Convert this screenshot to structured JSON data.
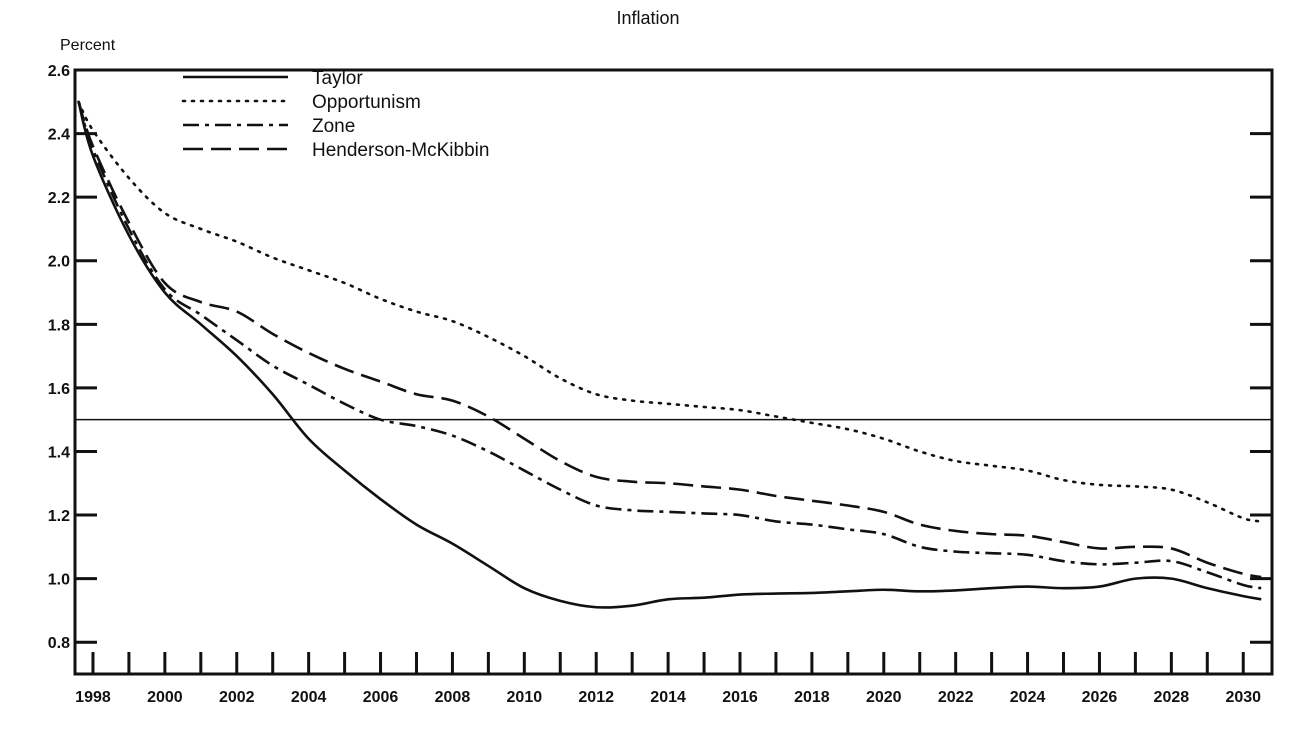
{
  "chart_data": {
    "type": "line",
    "title": "Inflation",
    "ylabel": "Percent",
    "xlabel": "",
    "xlim": [
      1997.5,
      2030.8
    ],
    "ylim": [
      0.7,
      2.6
    ],
    "reference_line": 1.5,
    "x_ticks": [
      1998,
      2000,
      2002,
      2004,
      2006,
      2008,
      2010,
      2012,
      2014,
      2016,
      2018,
      2020,
      2022,
      2024,
      2026,
      2028,
      2030
    ],
    "y_ticks": [
      0.8,
      1.0,
      1.2,
      1.4,
      1.6,
      1.8,
      2.0,
      2.2,
      2.4,
      2.6
    ],
    "y_tick_labels": [
      "0.8",
      "1.0",
      "1.2",
      "1.4",
      "1.6",
      "1.8",
      "2.0",
      "2.2",
      "2.4",
      "2.6"
    ],
    "legend_position": "top-left",
    "series": [
      {
        "name": "Taylor",
        "style": "solid",
        "x": [
          1997.6,
          1998,
          1999,
          2000,
          2001,
          2002,
          2003,
          2004,
          2005,
          2006,
          2007,
          2008,
          2009,
          2010,
          2011,
          2012,
          2013,
          2014,
          2015,
          2016,
          2017,
          2018,
          2019,
          2020,
          2021,
          2022,
          2023,
          2024,
          2025,
          2026,
          2027,
          2028,
          2029,
          2030,
          2030.5
        ],
        "y": [
          2.5,
          2.33,
          2.08,
          1.9,
          1.8,
          1.7,
          1.58,
          1.44,
          1.34,
          1.25,
          1.17,
          1.11,
          1.04,
          0.97,
          0.93,
          0.91,
          0.915,
          0.935,
          0.94,
          0.95,
          0.953,
          0.955,
          0.96,
          0.965,
          0.96,
          0.963,
          0.97,
          0.975,
          0.97,
          0.975,
          1.0,
          1.0,
          0.97,
          0.945,
          0.935
        ]
      },
      {
        "name": "Opportunism",
        "style": "dotted",
        "x": [
          1997.6,
          1998,
          1999,
          2000,
          2001,
          2002,
          2003,
          2004,
          2005,
          2006,
          2007,
          2008,
          2009,
          2010,
          2011,
          2012,
          2013,
          2014,
          2015,
          2016,
          2017,
          2018,
          2019,
          2020,
          2021,
          2022,
          2023,
          2024,
          2025,
          2026,
          2027,
          2028,
          2029,
          2030,
          2030.5
        ],
        "y": [
          2.5,
          2.41,
          2.26,
          2.15,
          2.1,
          2.06,
          2.01,
          1.97,
          1.93,
          1.88,
          1.84,
          1.81,
          1.76,
          1.7,
          1.63,
          1.58,
          1.56,
          1.55,
          1.54,
          1.53,
          1.51,
          1.49,
          1.47,
          1.44,
          1.4,
          1.37,
          1.355,
          1.34,
          1.31,
          1.295,
          1.29,
          1.28,
          1.24,
          1.19,
          1.18
        ]
      },
      {
        "name": "Zone",
        "style": "dashdot",
        "x": [
          1997.6,
          1998,
          1999,
          2000,
          2001,
          2002,
          2003,
          2004,
          2005,
          2006,
          2007,
          2008,
          2009,
          2010,
          2011,
          2012,
          2013,
          2014,
          2015,
          2016,
          2017,
          2018,
          2019,
          2020,
          2021,
          2022,
          2023,
          2024,
          2025,
          2026,
          2027,
          2028,
          2029,
          2030,
          2030.5
        ],
        "y": [
          2.5,
          2.35,
          2.1,
          1.91,
          1.83,
          1.75,
          1.67,
          1.61,
          1.55,
          1.5,
          1.48,
          1.45,
          1.4,
          1.34,
          1.28,
          1.23,
          1.215,
          1.21,
          1.205,
          1.2,
          1.18,
          1.17,
          1.155,
          1.14,
          1.1,
          1.085,
          1.08,
          1.075,
          1.055,
          1.045,
          1.05,
          1.055,
          1.02,
          0.98,
          0.97
        ]
      },
      {
        "name": "Henderson-McKibbin",
        "style": "dashed",
        "x": [
          1997.6,
          1998,
          1999,
          2000,
          2001,
          2002,
          2003,
          2004,
          2005,
          2006,
          2007,
          2008,
          2009,
          2010,
          2011,
          2012,
          2013,
          2014,
          2015,
          2016,
          2017,
          2018,
          2019,
          2020,
          2021,
          2022,
          2023,
          2024,
          2025,
          2026,
          2027,
          2028,
          2029,
          2030,
          2030.5
        ],
        "y": [
          2.5,
          2.36,
          2.12,
          1.93,
          1.87,
          1.84,
          1.77,
          1.71,
          1.66,
          1.62,
          1.58,
          1.56,
          1.51,
          1.44,
          1.37,
          1.32,
          1.305,
          1.3,
          1.29,
          1.28,
          1.26,
          1.245,
          1.23,
          1.21,
          1.17,
          1.15,
          1.14,
          1.135,
          1.115,
          1.095,
          1.1,
          1.095,
          1.05,
          1.015,
          1.005
        ]
      }
    ]
  }
}
